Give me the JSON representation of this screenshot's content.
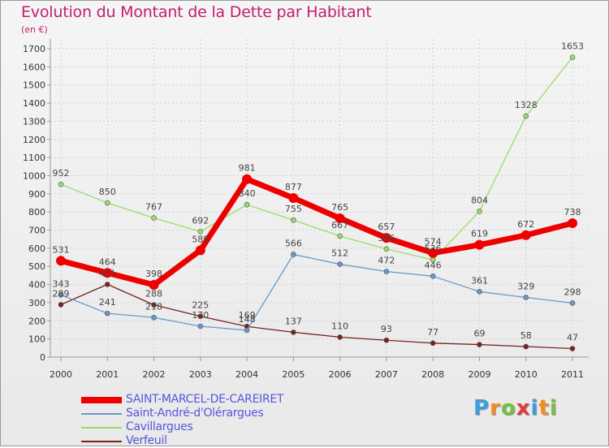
{
  "title": "Evolution du Montant de la Dette par Habitant",
  "subtitle": "(en €)",
  "logo": {
    "letters": [
      "P",
      "r",
      "o",
      "x",
      "i",
      "t",
      "i"
    ],
    "colors": [
      "#3aa0dd",
      "#f28c1e",
      "#76c043",
      "#e23a3a",
      "#3aa0dd",
      "#f28c1e",
      "#76c043"
    ]
  },
  "chart_data": {
    "type": "line",
    "x": [
      "2000",
      "2001",
      "2002",
      "2003",
      "2004",
      "2005",
      "2006",
      "2007",
      "2008",
      "2009",
      "2010",
      "2011"
    ],
    "yticks": [
      0,
      100,
      200,
      300,
      400,
      500,
      600,
      700,
      800,
      900,
      1000,
      1100,
      1200,
      1300,
      1400,
      1500,
      1600,
      1700
    ],
    "ylim": [
      0,
      1700
    ],
    "grid": true,
    "legend_position": "bottom-left",
    "series": [
      {
        "name": "SAINT-MARCEL-DE-CAREIRET",
        "color": "#ee0000",
        "values": [
          531,
          464,
          398,
          589,
          981,
          877,
          765,
          657,
          574,
          619,
          672,
          738
        ]
      },
      {
        "name": "Saint-André-d'Olérargues",
        "color": "#6699cc",
        "values": [
          343,
          241,
          218,
          170,
          148,
          566,
          512,
          472,
          446,
          361,
          329,
          298
        ]
      },
      {
        "name": "Cavillargues",
        "color": "#99dd66",
        "values": [
          952,
          850,
          767,
          692,
          840,
          755,
          667,
          596,
          536,
          804,
          1328,
          1653
        ]
      },
      {
        "name": "Verfeuil",
        "color": "#7a2222",
        "values": [
          289,
          401,
          288,
          225,
          169,
          137,
          110,
          93,
          77,
          69,
          58,
          47
        ]
      }
    ]
  }
}
